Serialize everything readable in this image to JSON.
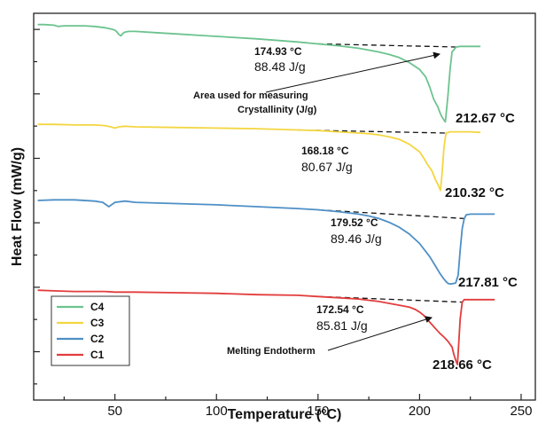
{
  "chart_data": {
    "type": "line",
    "title": "",
    "xlabel": "Temperature (°C)",
    "ylabel": "Heat Flow (mW/g)",
    "xlim": [
      10,
      257
    ],
    "x_ticks": [
      50,
      100,
      150,
      200,
      250
    ],
    "grid": false,
    "legend_position": "bottom-left",
    "series": [
      {
        "name": "C4",
        "color": "#6cc38f",
        "x": [
          12,
          15,
          20,
          22,
          25,
          30,
          35,
          40,
          45,
          48,
          50,
          51,
          52,
          53,
          54,
          55,
          57,
          60,
          70,
          80,
          90,
          100,
          120,
          140,
          150,
          160,
          170,
          175,
          180,
          185,
          190,
          195,
          200,
          203,
          205,
          207,
          209,
          210,
          211,
          212,
          212.67,
          213,
          214,
          215,
          216,
          218,
          220,
          225,
          230
        ],
        "y": [
          28.2,
          28.2,
          28.1,
          27.9,
          28.0,
          28.0,
          28.0,
          27.9,
          27.7,
          27.5,
          27.3,
          27.0,
          26.6,
          26.4,
          26.8,
          27.0,
          27.1,
          27.1,
          26.9,
          26.7,
          26.5,
          26.3,
          25.9,
          25.4,
          25.1,
          24.8,
          24.4,
          24.1,
          23.8,
          23.4,
          22.9,
          22.1,
          21.0,
          19.8,
          18.2,
          16.2,
          15.0,
          14.1,
          13.4,
          12.9,
          12.6,
          13.6,
          17.0,
          21.0,
          23.8,
          24.6,
          24.7,
          24.7,
          24.7
        ]
      },
      {
        "name": "C3",
        "color": "#f3d641",
        "x": [
          12,
          20,
          30,
          40,
          45,
          48,
          50,
          52,
          55,
          60,
          80,
          100,
          120,
          140,
          150,
          160,
          170,
          175,
          180,
          185,
          190,
          195,
          200,
          202,
          204,
          206,
          207,
          208,
          209,
          210.32,
          211,
          212,
          213,
          215,
          220,
          225,
          230
        ],
        "y": [
          12.2,
          12.2,
          12.1,
          12.1,
          12.0,
          11.8,
          11.6,
          11.8,
          11.9,
          11.8,
          11.7,
          11.6,
          11.5,
          11.3,
          11.2,
          11.0,
          10.8,
          10.7,
          10.5,
          10.2,
          9.8,
          9.0,
          7.8,
          6.8,
          5.7,
          4.8,
          4.0,
          3.2,
          2.6,
          1.6,
          4.0,
          8.5,
          10.8,
          11.0,
          11.0,
          11.0,
          10.9
        ]
      },
      {
        "name": "C2",
        "color": "#4e8fc6",
        "x": [
          12,
          20,
          30,
          40,
          44,
          47,
          50,
          55,
          60,
          80,
          100,
          120,
          140,
          150,
          160,
          170,
          175,
          180,
          185,
          190,
          195,
          200,
          205,
          208,
          210,
          212,
          213,
          214,
          215,
          217,
          217.81,
          219,
          220,
          221,
          222,
          223,
          225,
          230,
          237
        ],
        "y": [
          0.0,
          0.1,
          0.1,
          -0.1,
          -0.3,
          -1.0,
          -0.3,
          -0.1,
          -0.3,
          -0.5,
          -0.7,
          -1.0,
          -1.3,
          -1.5,
          -1.8,
          -2.2,
          -2.5,
          -2.9,
          -3.5,
          -4.3,
          -5.4,
          -6.9,
          -9.0,
          -10.6,
          -11.7,
          -12.6,
          -13.0,
          -13.3,
          -13.4,
          -13.3,
          -13.2,
          -12.0,
          -8.0,
          -4.5,
          -2.9,
          -2.3,
          -2.2,
          -2.2,
          -2.2
        ]
      },
      {
        "name": "C1",
        "color": "#e33c3c",
        "x": [
          12,
          20,
          30,
          40,
          45,
          50,
          60,
          80,
          100,
          120,
          140,
          150,
          160,
          170,
          175,
          180,
          185,
          190,
          195,
          198,
          200,
          202,
          205,
          208,
          210,
          212,
          214,
          216,
          217,
          218,
          218.66,
          219,
          220,
          221,
          222,
          225,
          230,
          237
        ],
        "y": [
          -14.4,
          -14.5,
          -14.6,
          -14.6,
          -14.6,
          -14.7,
          -14.7,
          -14.8,
          -14.9,
          -15.1,
          -15.2,
          -15.4,
          -15.6,
          -15.8,
          -16.0,
          -16.2,
          -16.5,
          -16.8,
          -17.1,
          -17.5,
          -17.9,
          -18.4,
          -19.5,
          -20.6,
          -21.3,
          -21.9,
          -22.6,
          -23.5,
          -24.8,
          -25.8,
          -26.3,
          -24.5,
          -19.0,
          -16.3,
          -15.9,
          -15.9,
          -15.9,
          -15.9
        ]
      }
    ],
    "annotations": [
      {
        "series": "C4",
        "onset": "174.93 °C",
        "enthalpy": "88.48 J/g",
        "peak": "212.67 °C"
      },
      {
        "series": "C3",
        "onset": "168.18 °C",
        "enthalpy": "80.67 J/g",
        "peak": "210.32 °C"
      },
      {
        "series": "C2",
        "onset": "179.52 °C",
        "enthalpy": "89.46 J/g",
        "peak": "217.81 °C"
      },
      {
        "series": "C1",
        "onset": "172.54 °C",
        "enthalpy": "85.81 J/g",
        "peak": "218.66 °C"
      }
    ],
    "notes": {
      "area_line1": "Area used for measuring",
      "area_line2": "Crystallinity (J/g)",
      "melting": "Melting Endotherm"
    }
  }
}
